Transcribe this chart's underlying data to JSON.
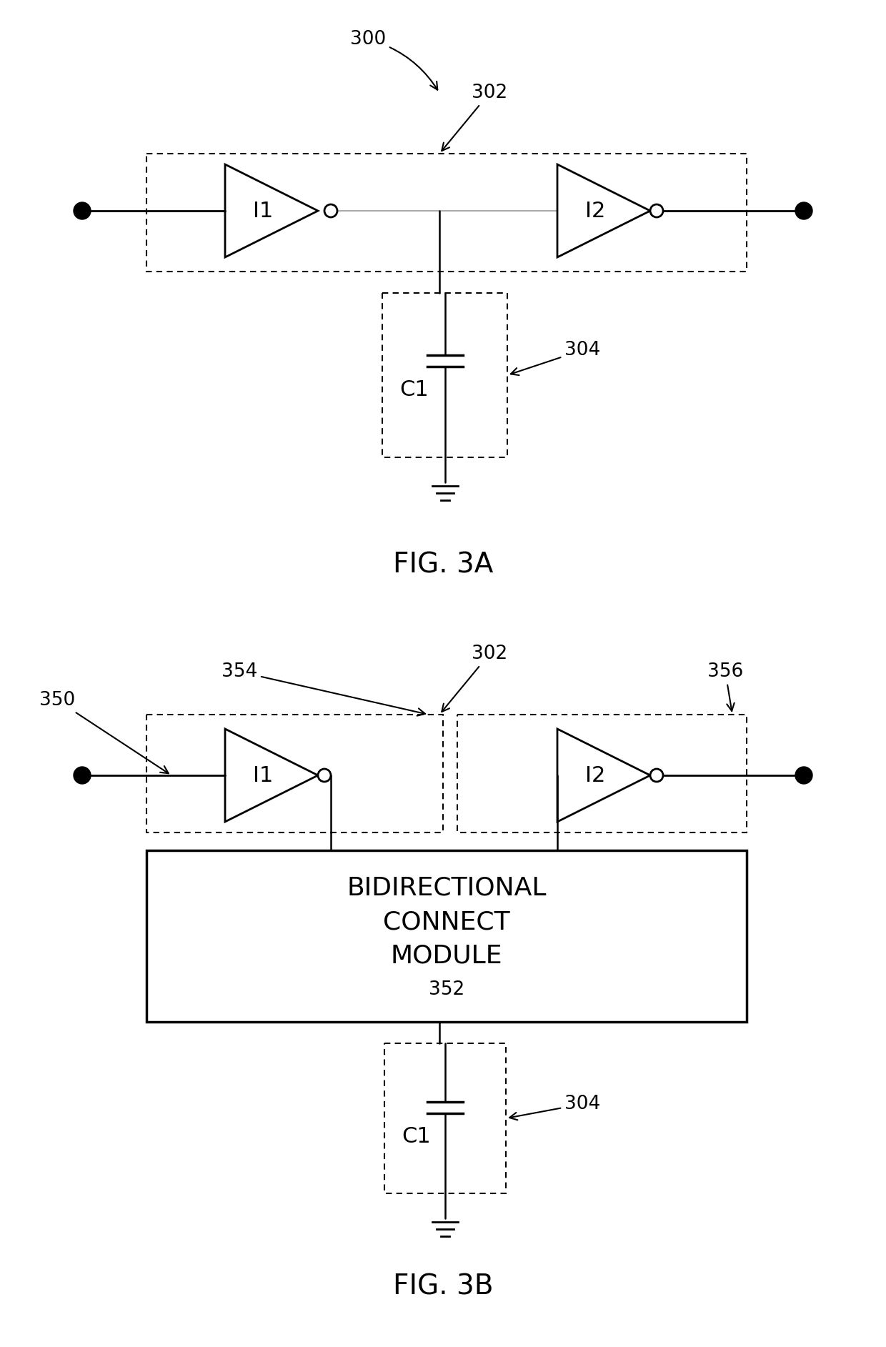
{
  "bg_color": "#ffffff",
  "fig_width": 12.4,
  "fig_height": 18.85,
  "fig3a": {
    "label": "FIG. 3A",
    "ref300": "300",
    "ref302": "302",
    "ref304": "304"
  },
  "fig3b": {
    "label": "FIG. 3B",
    "ref350": "350",
    "ref302": "302",
    "ref354": "354",
    "ref356": "356",
    "ref304": "304",
    "bcm_line1": "BIDIRECTIONAL",
    "bcm_line2": "CONNECT",
    "bcm_line3": "MODULE",
    "bcm_ref": "352"
  }
}
